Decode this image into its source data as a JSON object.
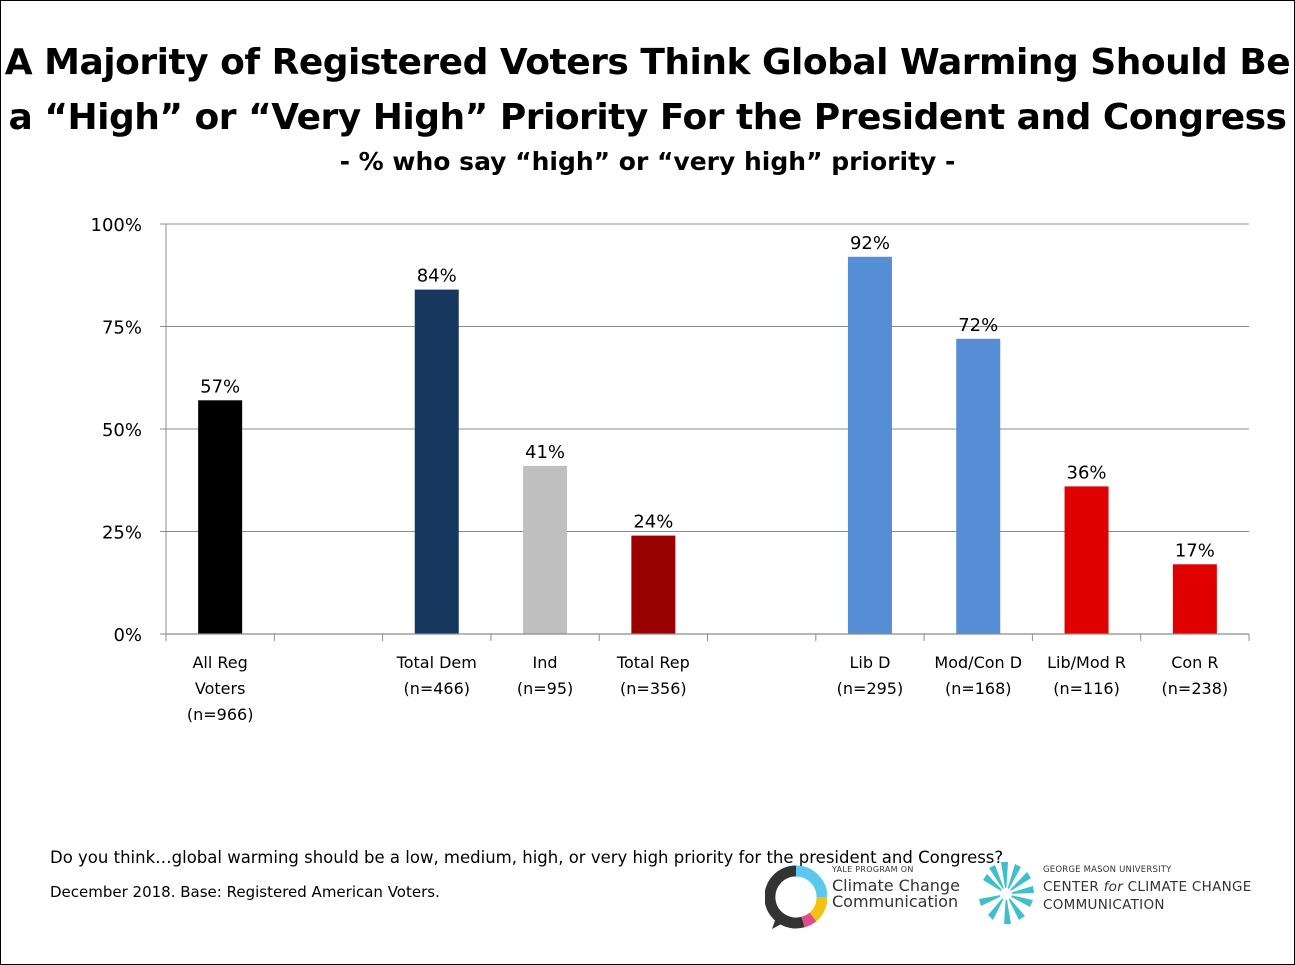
{
  "title_line1": "A Majority of Registered Voters Think Global Warming Should Be",
  "title_line2": "a “High” or “Very High” Priority For the President and Congress",
  "subtitle": "- % who say “high” or “very high” priority -",
  "footnote_question": "Do you think…global warming should be a low, medium, high, or very high priority for the president and Congress?",
  "footnote_base": "December 2018. Base: Registered American Voters.",
  "logo_yale": {
    "small": "YALE PROGRAM ON",
    "line1": "Climate Change",
    "line2": "Communication"
  },
  "logo_gmu": {
    "small": "GEORGE MASON UNIVERSITY",
    "line1_pre": "CENTER ",
    "line1_em": "for",
    "line1_post": " CLIMATE CHANGE",
    "line2": "COMMUNICATION"
  },
  "chart_data": {
    "type": "bar",
    "ylim": [
      0,
      100
    ],
    "yticks": [
      {
        "value": 0,
        "label": "0%"
      },
      {
        "value": 25,
        "label": "25%"
      },
      {
        "value": 50,
        "label": "50%"
      },
      {
        "value": 75,
        "label": "75%"
      },
      {
        "value": 100,
        "label": "100%"
      }
    ],
    "grid": true,
    "categories": [
      {
        "label_lines": [
          "All Reg",
          "Voters",
          "(n=966)"
        ],
        "value": 57,
        "value_label": "57%",
        "color": "#000000"
      },
      {
        "label_lines": [],
        "value": null,
        "value_label": "",
        "color": null
      },
      {
        "label_lines": [
          "Total Dem",
          "(n=466)"
        ],
        "value": 84,
        "value_label": "84%",
        "color": "#17375E"
      },
      {
        "label_lines": [
          "Ind",
          "(n=95)"
        ],
        "value": 41,
        "value_label": "41%",
        "color": "#BFBFBF"
      },
      {
        "label_lines": [
          "Total Rep",
          "(n=356)"
        ],
        "value": 24,
        "value_label": "24%",
        "color": "#990000"
      },
      {
        "label_lines": [],
        "value": null,
        "value_label": "",
        "color": null
      },
      {
        "label_lines": [
          "Lib D",
          "(n=295)"
        ],
        "value": 92,
        "value_label": "92%",
        "color": "#558ED5"
      },
      {
        "label_lines": [
          "Mod/Con D",
          "(n=168)"
        ],
        "value": 72,
        "value_label": "72%",
        "color": "#558ED5"
      },
      {
        "label_lines": [
          "Lib/Mod R",
          "(n=116)"
        ],
        "value": 36,
        "value_label": "36%",
        "color": "#E00000"
      },
      {
        "label_lines": [
          "Con R",
          "(n=238)"
        ],
        "value": 17,
        "value_label": "17%",
        "color": "#E00000"
      }
    ]
  }
}
